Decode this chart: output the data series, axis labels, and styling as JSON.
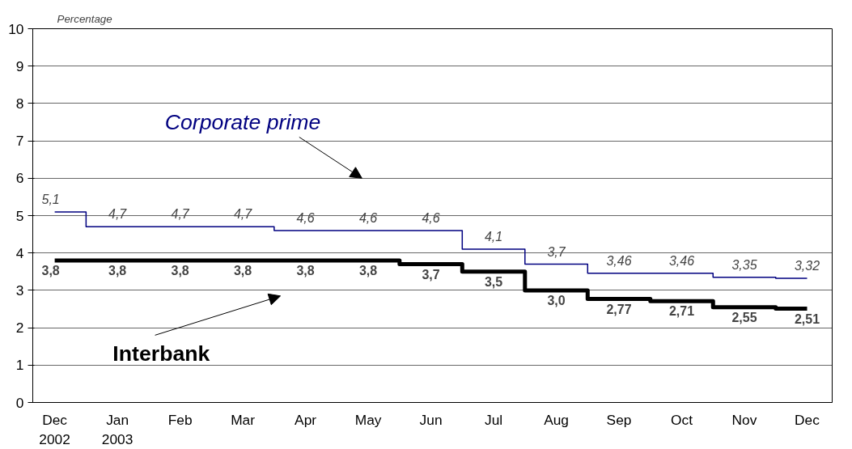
{
  "chart_data": {
    "type": "step",
    "ylabel": "Percentage",
    "categories": [
      "Dec\n2002",
      "Jan\n2003",
      "Feb",
      "Mar",
      "Apr",
      "May",
      "Jun",
      "Jul",
      "Aug",
      "Sep",
      "Oct",
      "Nov",
      "Dec"
    ],
    "series": [
      {
        "name": "Corporate prime",
        "color": "#000080",
        "values": [
          5.1,
          4.7,
          4.7,
          4.7,
          4.6,
          4.6,
          4.6,
          4.1,
          3.7,
          3.46,
          3.46,
          3.35,
          3.32
        ],
        "value_labels": [
          "5,1",
          "4,7",
          "4,7",
          "4,7",
          "4,6",
          "4,6",
          "4,6",
          "4,1",
          "3,7",
          "3,46",
          "3,46",
          "3,35",
          "3,32"
        ]
      },
      {
        "name": "Interbank",
        "color": "#000000",
        "values": [
          3.8,
          3.8,
          3.8,
          3.8,
          3.8,
          3.8,
          3.7,
          3.5,
          3.0,
          2.77,
          2.71,
          2.55,
          2.51
        ],
        "value_labels": [
          "3,8",
          "3,8",
          "3,8",
          "3,8",
          "3,8",
          "3,8",
          "3,7",
          "3,5",
          "3,0",
          "2,77",
          "2,71",
          "2,55",
          "2,51"
        ]
      }
    ],
    "ylim": [
      0,
      10
    ],
    "yticks": [
      0,
      1,
      2,
      3,
      4,
      5,
      6,
      7,
      8,
      9,
      10
    ],
    "grid": "y",
    "line_style": "solid",
    "marker": "none"
  }
}
